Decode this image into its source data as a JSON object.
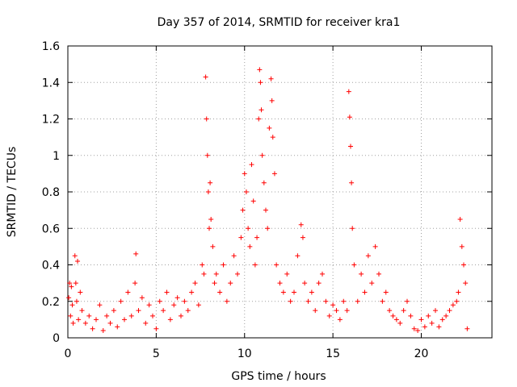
{
  "chart_data": {
    "type": "scatter",
    "title": "Day 357 of 2014, SRMTID for receiver kra1",
    "xlabel": "GPS time / hours",
    "ylabel": "SRMTID / TECUs",
    "xlim": [
      0,
      24
    ],
    "ylim": [
      0,
      1.6
    ],
    "xticks": [
      0,
      5,
      10,
      15,
      20
    ],
    "xtick_labels": [
      "0",
      "5",
      "10",
      "15",
      "20"
    ],
    "yticks": [
      0,
      0.2,
      0.4,
      0.6,
      0.8,
      1,
      1.2,
      1.4,
      1.6
    ],
    "ytick_labels": [
      "0",
      "0.2",
      "0.4",
      "0.6",
      "0.8",
      "1",
      "1.2",
      "1.4",
      "1.6"
    ],
    "grid": true,
    "marker": "+",
    "series": [
      {
        "name": "SRMTID",
        "color": "#ff0000",
        "x": [
          0.05,
          0.1,
          0.15,
          0.2,
          0.25,
          0.3,
          0.4,
          0.45,
          0.5,
          0.55,
          0.6,
          0.7,
          0.8,
          1.0,
          1.2,
          1.4,
          1.6,
          1.8,
          2.0,
          2.2,
          2.4,
          2.6,
          2.8,
          3.0,
          3.2,
          3.4,
          3.6,
          3.8,
          3.85,
          4.0,
          4.2,
          4.4,
          4.6,
          4.8,
          5.0,
          5.2,
          5.4,
          5.6,
          5.8,
          6.0,
          6.2,
          6.4,
          6.6,
          6.8,
          7.0,
          7.2,
          7.4,
          7.6,
          7.7,
          7.8,
          7.85,
          7.9,
          7.95,
          8.0,
          8.05,
          8.1,
          8.2,
          8.3,
          8.4,
          8.6,
          8.8,
          9.0,
          9.2,
          9.4,
          9.6,
          9.8,
          9.9,
          10.0,
          10.1,
          10.2,
          10.3,
          10.4,
          10.5,
          10.6,
          10.7,
          10.8,
          10.85,
          10.9,
          10.95,
          11.0,
          11.1,
          11.2,
          11.3,
          11.4,
          11.5,
          11.55,
          11.6,
          11.7,
          11.8,
          12.0,
          12.2,
          12.4,
          12.6,
          12.8,
          13.0,
          13.2,
          13.3,
          13.4,
          13.6,
          13.8,
          14.0,
          14.2,
          14.4,
          14.6,
          14.8,
          15.0,
          15.2,
          15.4,
          15.6,
          15.8,
          15.9,
          15.95,
          16.0,
          16.05,
          16.1,
          16.2,
          16.4,
          16.6,
          16.8,
          17.0,
          17.2,
          17.4,
          17.6,
          17.8,
          18.0,
          18.2,
          18.4,
          18.6,
          18.8,
          19.0,
          19.2,
          19.4,
          19.6,
          19.8,
          20.0,
          20.2,
          20.4,
          20.6,
          20.8,
          21.0,
          21.2,
          21.4,
          21.6,
          21.8,
          22.0,
          22.1,
          22.2,
          22.3,
          22.4,
          22.5,
          22.6
        ],
        "y": [
          0.22,
          0.3,
          0.12,
          0.28,
          0.18,
          0.08,
          0.45,
          0.3,
          0.2,
          0.42,
          0.1,
          0.25,
          0.15,
          0.08,
          0.12,
          0.05,
          0.1,
          0.18,
          0.04,
          0.12,
          0.08,
          0.15,
          0.06,
          0.2,
          0.1,
          0.25,
          0.12,
          0.3,
          0.46,
          0.15,
          0.22,
          0.08,
          0.18,
          0.12,
          0.05,
          0.2,
          0.15,
          0.25,
          0.1,
          0.18,
          0.22,
          0.12,
          0.2,
          0.15,
          0.25,
          0.3,
          0.18,
          0.4,
          0.35,
          1.43,
          1.2,
          1.0,
          0.8,
          0.6,
          0.85,
          0.65,
          0.5,
          0.3,
          0.35,
          0.25,
          0.4,
          0.2,
          0.3,
          0.45,
          0.35,
          0.55,
          0.7,
          0.9,
          0.8,
          0.6,
          0.5,
          0.95,
          0.75,
          0.4,
          0.55,
          1.2,
          1.47,
          1.4,
          1.25,
          1.0,
          0.85,
          0.7,
          0.6,
          1.15,
          1.42,
          1.3,
          1.1,
          0.9,
          0.4,
          0.3,
          0.25,
          0.35,
          0.2,
          0.25,
          0.45,
          0.62,
          0.55,
          0.3,
          0.2,
          0.25,
          0.15,
          0.3,
          0.35,
          0.2,
          0.12,
          0.18,
          0.15,
          0.1,
          0.2,
          0.15,
          1.35,
          1.21,
          1.05,
          0.85,
          0.6,
          0.4,
          0.2,
          0.35,
          0.25,
          0.45,
          0.3,
          0.5,
          0.35,
          0.2,
          0.25,
          0.15,
          0.12,
          0.1,
          0.08,
          0.15,
          0.2,
          0.12,
          0.05,
          0.04,
          0.1,
          0.06,
          0.12,
          0.08,
          0.15,
          0.06,
          0.1,
          0.12,
          0.15,
          0.18,
          0.2,
          0.25,
          0.65,
          0.5,
          0.4,
          0.3,
          0.05
        ]
      }
    ]
  }
}
